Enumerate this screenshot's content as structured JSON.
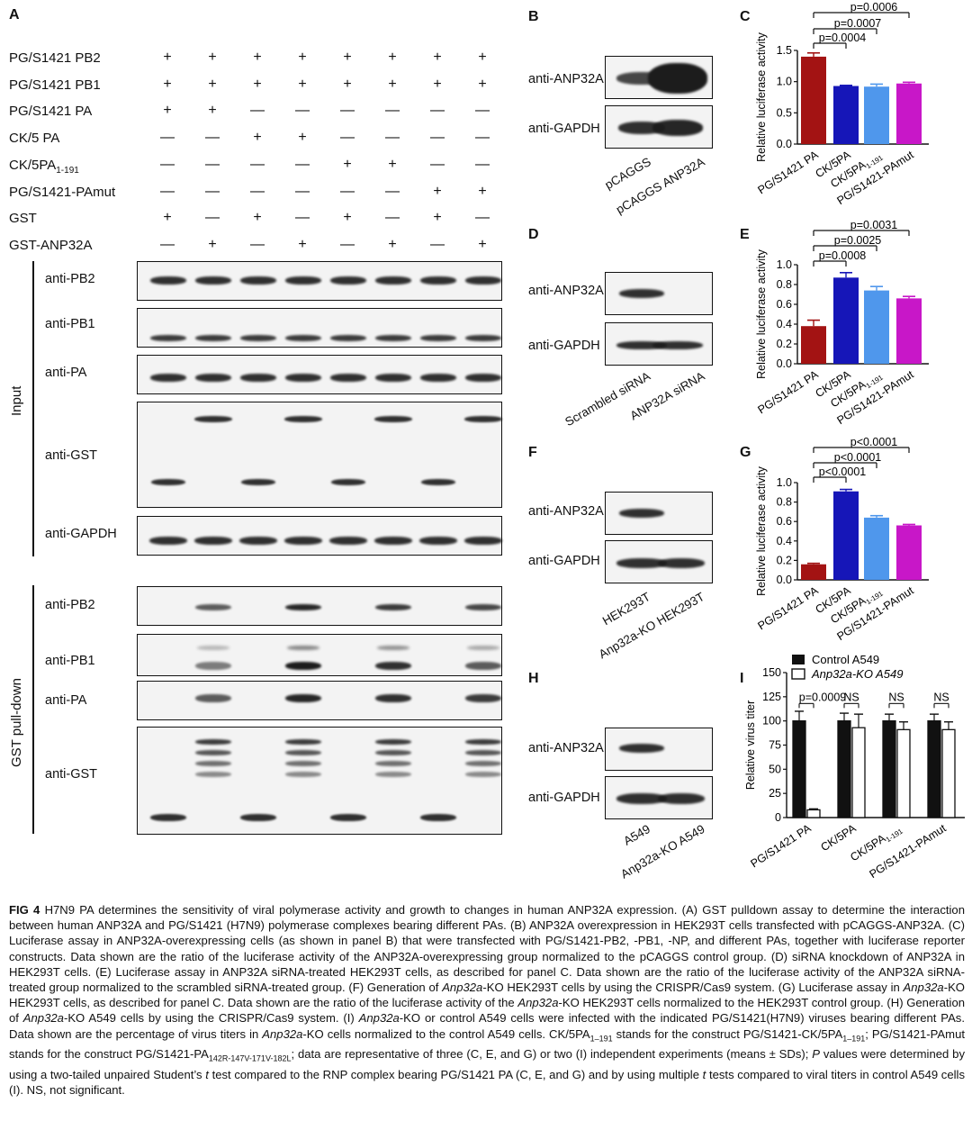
{
  "panels": {
    "A": "A",
    "B": "B",
    "C": "C",
    "D": "D",
    "E": "E",
    "F": "F",
    "G": "G",
    "H": "H",
    "I": "I"
  },
  "panelA": {
    "rows": [
      {
        "label": "PG/S1421 PB2",
        "signs": [
          "+",
          "+",
          "+",
          "+",
          "+",
          "+",
          "+",
          "+"
        ]
      },
      {
        "label": "PG/S1421 PB1",
        "signs": [
          "+",
          "+",
          "+",
          "+",
          "+",
          "+",
          "+",
          "+"
        ]
      },
      {
        "label": "PG/S1421 PA",
        "signs": [
          "+",
          "+",
          "—",
          "—",
          "—",
          "—",
          "—",
          "—"
        ]
      },
      {
        "label": "CK/5 PA",
        "signs": [
          "—",
          "—",
          "+",
          "+",
          "—",
          "—",
          "—",
          "—"
        ]
      },
      {
        "label": "CK/5PA",
        "sub": "1-191",
        "signs": [
          "—",
          "—",
          "—",
          "—",
          "+",
          "+",
          "—",
          "—"
        ]
      },
      {
        "label": "PG/S1421-PAmut",
        "signs": [
          "—",
          "—",
          "—",
          "—",
          "—",
          "—",
          "+",
          "+"
        ]
      },
      {
        "label": "GST",
        "signs": [
          "+",
          "—",
          "+",
          "—",
          "+",
          "—",
          "+",
          "—"
        ]
      },
      {
        "label": "GST-ANP32A",
        "signs": [
          "—",
          "+",
          "—",
          "+",
          "—",
          "+",
          "—",
          "+"
        ]
      }
    ],
    "section_input": "Input",
    "section_pulldown": "GST pull-down",
    "input_blots": [
      "anti-PB2",
      "anti-PB1",
      "anti-PA",
      "anti-GST",
      "anti-GAPDH"
    ],
    "pulldown_blots": [
      "anti-PB2",
      "anti-PB1",
      "anti-PA",
      "anti-GST"
    ]
  },
  "panelB": {
    "blots": [
      "anti-ANP32A",
      "anti-GAPDH"
    ],
    "lanes": [
      "pCAGGS",
      "pCAGGS ANP32A"
    ]
  },
  "panelD": {
    "blots": [
      "anti-ANP32A",
      "anti-GAPDH"
    ],
    "lanes": [
      "Scrambled siRNA",
      "ANP32A siRNA"
    ]
  },
  "panelF": {
    "blots": [
      "anti-ANP32A",
      "anti-GAPDH"
    ],
    "lanes": [
      "HEK293T",
      "Anp32a-KO HEK293T"
    ]
  },
  "panelH": {
    "blots": [
      "anti-ANP32A",
      "anti-GAPDH"
    ],
    "lanes": [
      "A549",
      "Anp32a-KO A549"
    ]
  },
  "chart_data": [
    {
      "panel": "C",
      "type": "bar",
      "ylabel": "Relative luciferase activity",
      "ylim": [
        0,
        1.5
      ],
      "yticks": [
        "0.0",
        "0.5",
        "1.0",
        "1.5"
      ],
      "categories": [
        "PG/S1421 PA",
        "CK/5PA",
        "CK/5PA",
        "PG/S1421-PAmut"
      ],
      "cat_sub": [
        "",
        "",
        "1-191",
        ""
      ],
      "values": [
        1.4,
        0.93,
        0.92,
        0.97
      ],
      "errors": [
        0.06,
        0.01,
        0.04,
        0.02
      ],
      "colors": [
        "#a31313",
        "#1616b8",
        "#4f97ec",
        "#c817c8"
      ],
      "pvalues": [
        "p=0.0006",
        "p=0.0007",
        "p=0.0004"
      ]
    },
    {
      "panel": "E",
      "type": "bar",
      "ylabel": "Relative luciferase activity",
      "ylim": [
        0,
        1.0
      ],
      "yticks": [
        "0.0",
        "0.2",
        "0.4",
        "0.6",
        "0.8",
        "1.0"
      ],
      "categories": [
        "PG/S1421 PA",
        "CK/5PA",
        "CK/5PA",
        "PG/S1421-PAmut"
      ],
      "cat_sub": [
        "",
        "",
        "1-191",
        ""
      ],
      "values": [
        0.38,
        0.87,
        0.74,
        0.66
      ],
      "errors": [
        0.06,
        0.05,
        0.04,
        0.02
      ],
      "colors": [
        "#a31313",
        "#1616b8",
        "#4f97ec",
        "#c817c8"
      ],
      "pvalues": [
        "p=0.0031",
        "p=0.0025",
        "p=0.0008"
      ]
    },
    {
      "panel": "G",
      "type": "bar",
      "ylabel": "Relative luciferase activity",
      "ylim": [
        0,
        1.0
      ],
      "yticks": [
        "0.0",
        "0.2",
        "0.4",
        "0.6",
        "0.8",
        "1.0"
      ],
      "categories": [
        "PG/S1421 PA",
        "CK/5PA",
        "CK/5PA",
        "PG/S1421-PAmut"
      ],
      "cat_sub": [
        "",
        "",
        "1-191",
        ""
      ],
      "values": [
        0.16,
        0.91,
        0.64,
        0.56
      ],
      "errors": [
        0.01,
        0.02,
        0.02,
        0.01
      ],
      "colors": [
        "#a31313",
        "#1616b8",
        "#4f97ec",
        "#c817c8"
      ],
      "pvalues": [
        "p<0.0001",
        "p<0.0001",
        "p<0.0001"
      ]
    },
    {
      "panel": "I",
      "type": "bar",
      "ylabel": "Relative virus titer",
      "ylim": [
        0,
        150
      ],
      "yticks": [
        "0",
        "25",
        "50",
        "75",
        "100",
        "125",
        "150"
      ],
      "categories": [
        "PG/S1421 PA",
        "CK/5PA",
        "CK/5PA",
        "PG/S1421-PAmut"
      ],
      "cat_sub": [
        "",
        "",
        "1-191",
        ""
      ],
      "series": [
        {
          "name": "Control A549",
          "values": [
            100,
            100,
            100,
            100
          ],
          "errors": [
            10,
            8,
            7,
            7
          ]
        },
        {
          "name": "Anp32a-KO A549",
          "values": [
            8,
            93,
            91,
            91
          ],
          "errors": [
            1,
            14,
            8,
            8
          ]
        }
      ],
      "pvalues": [
        "p=0.0009",
        "NS",
        "NS",
        "NS"
      ]
    }
  ],
  "caption": {
    "fig": "FIG 4",
    "sentences": [
      "H7N9 PA determines the sensitivity of viral polymerase activity and growth to changes in human ANP32A expression. (A) GST pulldown assay to determine the interaction between human ANP32A and PG/S1421 (H7N9) polymerase complexes bearing different PAs. (B) ANP32A overexpression in HEK293T cells transfected with pCAGGS-ANP32A. (C) Luciferase assay in ANP32A-overexpressing cells (as shown in panel B) that were transfected with PG/S1421-PB2, -PB1, -NP, and different PAs, together with luciferase reporter constructs. Data shown are the ratio of the luciferase activity of the ANP32A-overexpressing group normalized to the pCAGGS control group. (D) siRNA knockdown of ANP32A in HEK293T cells. (E) Luciferase assay in ANP32A siRNA-treated HEK293T cells, as described for panel C. Data shown are the ratio of the luciferase activity of the ANP32A siRNA-treated group normalized to the scrambled siRNA-treated group. (F) Generation of ",
      "Anp32a",
      "-KO HEK293T cells by using the CRISPR/Cas9 system. (G) Luciferase assay in ",
      "Anp32a",
      "-KO HEK293T cells, as described for panel C. Data shown are the ratio of the luciferase activity of the ",
      "Anp32a",
      "-KO HEK293T cells normalized to the HEK293T control group. (H) Generation of ",
      "Anp32a",
      "-KO A549 cells by using the CRISPR/Cas9 system. (I) ",
      "Anp32a",
      "-KO or control A549 cells were infected with the indicated PG/S1421(H7N9) viruses bearing different PAs. Data shown are the percentage of virus titers in ",
      "Anp32a",
      "-KO cells normalized to the control A549 cells. CK/5PA",
      "1–191",
      " stands for the construct PG/S1421-CK/5PA",
      "1–191",
      "; PG/S1421-PAmut stands for the construct PG/S1421-PA",
      "142R-147V-171V-182L",
      "; data are representative of three (C, E, and G) or two (I) independent experiments (means ± SDs); ",
      "P",
      " values were determined by using a two-tailed unpaired Student’s ",
      "t",
      " test compared to the RNP complex bearing PG/S1421 PA (C, E, and G) and by using multiple ",
      "t",
      " tests compared to viral titers in control A549 cells (I). NS, not significant."
    ]
  }
}
